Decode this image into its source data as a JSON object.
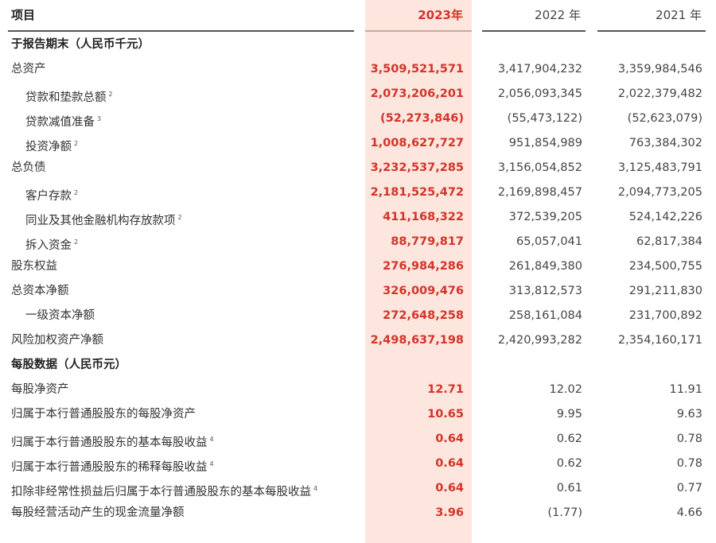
{
  "header": {
    "label": "项目",
    "col_2023": "2023年",
    "col_2022": "2022 年",
    "col_2021": "2021 年"
  },
  "rows": [
    {
      "label": "于报告期末（人民币千元）",
      "type": "section"
    },
    {
      "label": "总资产",
      "v2023": "3,509,521,571",
      "v2022": "3,417,904,232",
      "v2021": "3,359,984,546"
    },
    {
      "label": "贷款和垫款总额",
      "sup": "2",
      "indent": true,
      "v2023": "2,073,206,201",
      "v2022": "2,056,093,345",
      "v2021": "2,022,379,482"
    },
    {
      "label": "贷款减值准备",
      "sup": "3",
      "indent": true,
      "v2023": "(52,273,846)",
      "v2022": "(55,473,122)",
      "v2021": "(52,623,079)"
    },
    {
      "label": "投资净额",
      "sup": "2",
      "indent": true,
      "v2023": "1,008,627,727",
      "v2022": "951,854,989",
      "v2021": "763,384,302"
    },
    {
      "label": "总负债",
      "v2023": "3,232,537,285",
      "v2022": "3,156,054,852",
      "v2021": "3,125,483,791"
    },
    {
      "label": "客户存款",
      "sup": "2",
      "indent": true,
      "v2023": "2,181,525,472",
      "v2022": "2,169,898,457",
      "v2021": "2,094,773,205"
    },
    {
      "label": "同业及其他金融机构存放款项",
      "sup": "2",
      "indent": true,
      "v2023": "411,168,322",
      "v2022": "372,539,205",
      "v2021": "524,142,226"
    },
    {
      "label": "拆入资金",
      "sup": "2",
      "indent": true,
      "v2023": "88,779,817",
      "v2022": "65,057,041",
      "v2021": "62,817,384"
    },
    {
      "label": "股东权益",
      "v2023": "276,984,286",
      "v2022": "261,849,380",
      "v2021": "234,500,755"
    },
    {
      "label": "总资本净额",
      "v2023": "326,009,476",
      "v2022": "313,812,573",
      "v2021": "291,211,830"
    },
    {
      "label": "一级资本净额",
      "indent": true,
      "v2023": "272,648,258",
      "v2022": "258,161,084",
      "v2021": "231,700,892"
    },
    {
      "label": "风险加权资产净额",
      "v2023": "2,498,637,198",
      "v2022": "2,420,993,282",
      "v2021": "2,354,160,171"
    },
    {
      "label": "每股数据（人民币元）",
      "type": "section"
    },
    {
      "label": "每股净资产",
      "v2023": "12.71",
      "v2022": "12.02",
      "v2021": "11.91"
    },
    {
      "label": "归属于本行普通股股东的每股净资产",
      "v2023": "10.65",
      "v2022": "9.95",
      "v2021": "9.63"
    },
    {
      "label": "归属于本行普通股股东的基本每股收益",
      "sup": "4",
      "v2023": "0.64",
      "v2022": "0.62",
      "v2021": "0.78"
    },
    {
      "label": "归属于本行普通股股东的稀释每股收益",
      "sup": "4",
      "v2023": "0.64",
      "v2022": "0.62",
      "v2021": "0.78"
    },
    {
      "label": "扣除非经常性损益后归属于本行普通股股东的基本每股收益",
      "sup": "4",
      "v2023": "0.64",
      "v2022": "0.61",
      "v2021": "0.77"
    },
    {
      "label": "每股经营活动产生的现金流量净额",
      "v2023": "3.96",
      "v2022": "(1.77)",
      "v2021": "4.66"
    }
  ],
  "colors": {
    "highlight_bg": "#fde6de",
    "accent_red": "#d2342b",
    "text": "#333333"
  }
}
